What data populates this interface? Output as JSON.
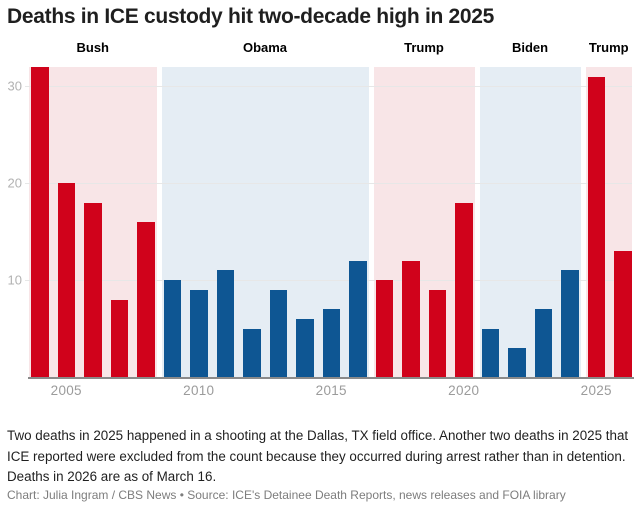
{
  "header": {
    "title": "Deaths in ICE custody hit two-decade high in 2025"
  },
  "chart_data": {
    "type": "bar",
    "categories": [
      2004,
      2005,
      2006,
      2007,
      2008,
      2009,
      2010,
      2011,
      2012,
      2013,
      2014,
      2015,
      2016,
      2017,
      2018,
      2019,
      2020,
      2021,
      2022,
      2023,
      2024,
      2025,
      2026
    ],
    "values": [
      32,
      20,
      18,
      8,
      16,
      10,
      9,
      11,
      5,
      9,
      6,
      7,
      12,
      10,
      12,
      9,
      18,
      5,
      3,
      7,
      11,
      31,
      13
    ],
    "eras": [
      {
        "label": "Bush",
        "party": "republican",
        "start_year": 2004,
        "end_year": 2008
      },
      {
        "label": "Obama",
        "party": "democrat",
        "start_year": 2009,
        "end_year": 2016
      },
      {
        "label": "Trump",
        "party": "republican",
        "start_year": 2017,
        "end_year": 2020
      },
      {
        "label": "Biden",
        "party": "democrat",
        "start_year": 2021,
        "end_year": 2024
      },
      {
        "label": "Trump",
        "party": "republican",
        "start_year": 2025,
        "end_year": 2026
      }
    ],
    "y_ticks": [
      10,
      20,
      30
    ],
    "x_ticks": [
      2005,
      2010,
      2015,
      2020,
      2025
    ],
    "ylim": [
      0,
      32
    ],
    "grid": true,
    "legend_position": "none",
    "title": "Deaths in ICE custody hit two-decade high in 2025",
    "xlabel": "",
    "ylabel": "",
    "colors": {
      "republican_bar": "#d0021b",
      "democrat_bar": "#0e5693",
      "republican_band": "#f8e5e7",
      "democrat_band": "#e5edf4"
    }
  },
  "footer": {
    "note": "Two deaths in 2025 happened in a shooting at the Dallas, TX field office. Another two deaths in 2025 that ICE reported were excluded from the count because they occurred during arrest rather than in detention. Deaths in 2026 are as of March 16.",
    "credit": "Chart: Julia Ingram / CBS News • Source: ICE's Detainee Death Reports, news releases and FOIA library"
  }
}
